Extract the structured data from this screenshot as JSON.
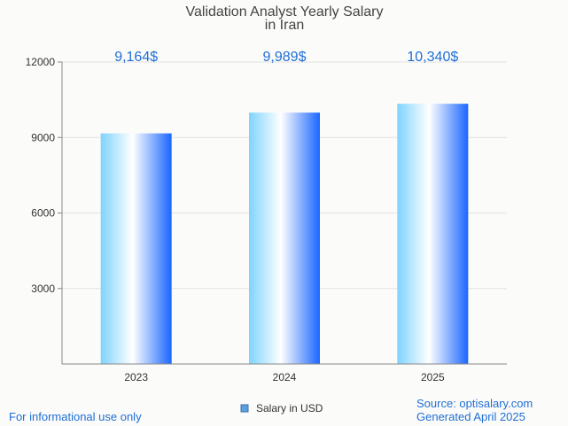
{
  "chart_data": {
    "type": "bar",
    "title": [
      "Validation Analyst Yearly Salary",
      "in Iran"
    ],
    "categories": [
      "2023",
      "2024",
      "2025"
    ],
    "series": [
      {
        "name": "Salary in USD",
        "values": [
          9164,
          9989,
          10340
        ]
      }
    ],
    "data_labels": [
      "9,164$",
      "9,989$",
      "10,340$"
    ],
    "ylim": [
      0,
      12000
    ],
    "yticks": [
      3000,
      6000,
      9000,
      12000
    ],
    "grid": true,
    "legend_position": "bottom-center",
    "bar_gradient": [
      "#7fd3ff",
      "#ffffff",
      "#1a66ff"
    ]
  },
  "footer": {
    "left": "For informational use only",
    "source": "Source: optisalary.com",
    "generated": "Generated April 2025"
  }
}
